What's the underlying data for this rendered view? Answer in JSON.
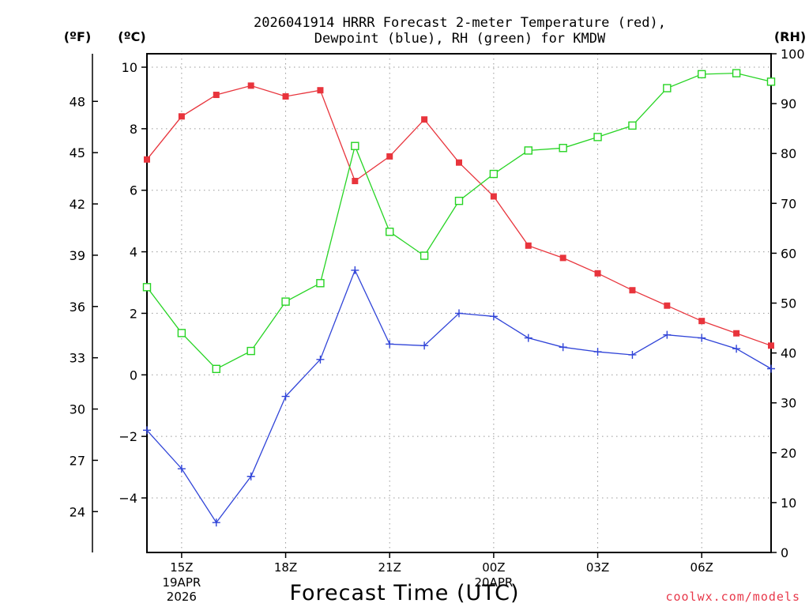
{
  "chart_data": {
    "type": "line",
    "title_line1": "2026041914 HRRR Forecast 2-meter Temperature (red),",
    "title_line2": "Dewpoint (blue), RH (green) for KMDW",
    "xlabel": "Forecast Time (UTC)",
    "credit": "coolwx.com/models",
    "units": {
      "fahrenheit": "(ºF)",
      "celsius": "(ºC)",
      "rh": "(RH)"
    },
    "hours": [
      14,
      15,
      16,
      17,
      18,
      19,
      20,
      21,
      22,
      23,
      24,
      25,
      26,
      27,
      28,
      29,
      30,
      31,
      32
    ],
    "xlim": [
      14,
      32
    ],
    "x_ticks": [
      {
        "hour": 15,
        "label": "15Z"
      },
      {
        "hour": 18,
        "label": "18Z"
      },
      {
        "hour": 21,
        "label": "21Z"
      },
      {
        "hour": 24,
        "label": "00Z"
      },
      {
        "hour": 27,
        "label": "03Z"
      },
      {
        "hour": 30,
        "label": "06Z"
      }
    ],
    "date_labels": [
      {
        "hour": 15,
        "lines": [
          "19APR",
          "2026"
        ]
      },
      {
        "hour": 24,
        "lines": [
          "20APR"
        ]
      }
    ],
    "celsius_axis": {
      "ylim": [
        -5.8,
        10.5
      ],
      "ticks": [
        -4,
        -2,
        0,
        2,
        4,
        6,
        8,
        10
      ]
    },
    "fahrenheit_ticks": [
      24,
      27,
      30,
      33,
      36,
      39,
      42,
      45,
      48
    ],
    "rh_axis": {
      "ylim": [
        0,
        100
      ],
      "ticks": [
        0,
        10,
        20,
        30,
        40,
        50,
        60,
        70,
        80,
        90,
        100
      ]
    },
    "series": [
      {
        "name": "Temperature",
        "axis": "celsius",
        "color": "#e8343c",
        "marker": "filled-square",
        "values": [
          7.0,
          8.4,
          9.1,
          9.4,
          9.05,
          9.25,
          6.3,
          7.1,
          8.3,
          6.9,
          5.8,
          4.2,
          3.8,
          3.3,
          2.75,
          2.25,
          1.75,
          1.35,
          0.95
        ]
      },
      {
        "name": "Dewpoint",
        "axis": "celsius",
        "color": "#3044d8",
        "marker": "plus",
        "values": [
          -1.8,
          -3.05,
          -4.8,
          -3.3,
          -0.7,
          0.5,
          3.4,
          1.0,
          0.95,
          2.0,
          1.9,
          1.2,
          0.9,
          0.75,
          0.65,
          1.3,
          1.2,
          0.85,
          0.2
        ]
      },
      {
        "name": "RH",
        "axis": "rh",
        "color": "#27d424",
        "marker": "open-square",
        "values": [
          53.2,
          44.0,
          36.8,
          40.4,
          50.3,
          54.0,
          81.5,
          64.3,
          59.5,
          70.5,
          75.9,
          80.6,
          81.1,
          83.3,
          85.6,
          93.1,
          95.9,
          96.1,
          94.4
        ]
      }
    ]
  }
}
